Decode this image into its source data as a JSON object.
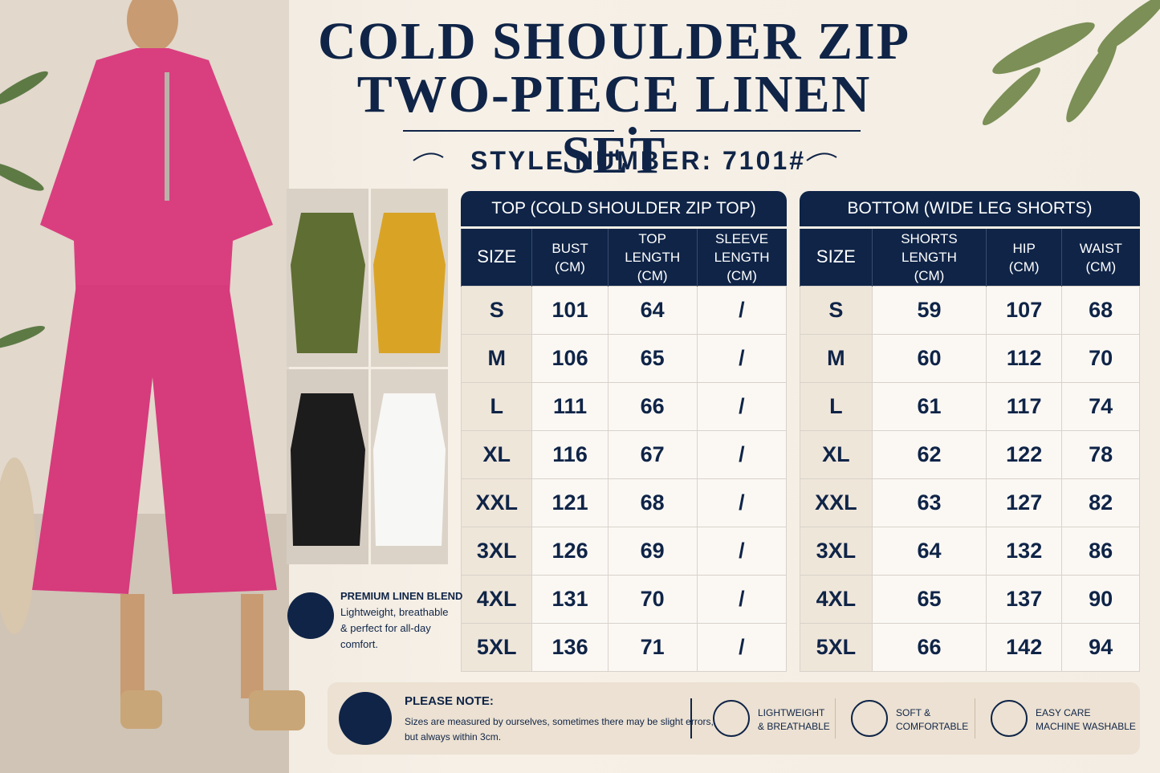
{
  "header": {
    "title_lines": [
      "COLD SHOULDER ZIP",
      "TWO-PIECE LINEN SET"
    ],
    "style_number": "STYLE NUMBER: 7101#"
  },
  "tables": [
    {
      "title": "TOP (COLD SHOULDER ZIP TOP)",
      "columns": [
        [
          "SIZE"
        ],
        [
          "BUST",
          "(CM)"
        ],
        [
          "TOP LENGTH",
          "(CM)"
        ],
        [
          "SLEEVE",
          "LENGTH (CM)"
        ]
      ],
      "rows": [
        [
          "S",
          101,
          64,
          "/"
        ],
        [
          "M",
          106,
          65,
          "/"
        ],
        [
          "L",
          111,
          66,
          "/"
        ],
        [
          "XL",
          116,
          67,
          "/"
        ],
        [
          "XXL",
          121,
          68,
          "/"
        ],
        [
          "3XL",
          126,
          69,
          "/"
        ],
        [
          "4XL",
          131,
          70,
          "/"
        ],
        [
          "5XL",
          136,
          71,
          "/"
        ]
      ]
    },
    {
      "title": "BOTTOM (WIDE LEG SHORTS)",
      "columns": [
        [
          "SIZE"
        ],
        [
          "SHORTS LENGTH",
          "(CM)"
        ],
        [
          "HIP",
          "(CM)"
        ],
        [
          "WAIST",
          "(CM)"
        ]
      ],
      "rows": [
        [
          "S",
          59,
          107,
          68
        ],
        [
          "M",
          60,
          112,
          70
        ],
        [
          "L",
          61,
          117,
          74
        ],
        [
          "XL",
          62,
          122,
          78
        ],
        [
          "XXL",
          63,
          127,
          82
        ],
        [
          "3XL",
          64,
          132,
          86
        ],
        [
          "4XL",
          65,
          137,
          90
        ],
        [
          "5XL",
          66,
          142,
          94
        ]
      ]
    }
  ],
  "feature": {
    "title": "PREMIUM LINEN BLEND",
    "text": [
      "Lightweight, breathable",
      "& perfect for all-day",
      "comfort."
    ]
  },
  "note": {
    "title": "PLEASE NOTE:",
    "text": [
      "Sizes are measured by ourselves, sometimes there may be slight errors,",
      "but always within 3cm."
    ]
  },
  "badges": [
    [
      "LIGHTWEIGHT",
      "& BREATHABLE"
    ],
    [
      "SOFT &",
      "COMFORTABLE"
    ],
    [
      "EASY CARE",
      "MACHINE WASHABLE"
    ]
  ]
}
